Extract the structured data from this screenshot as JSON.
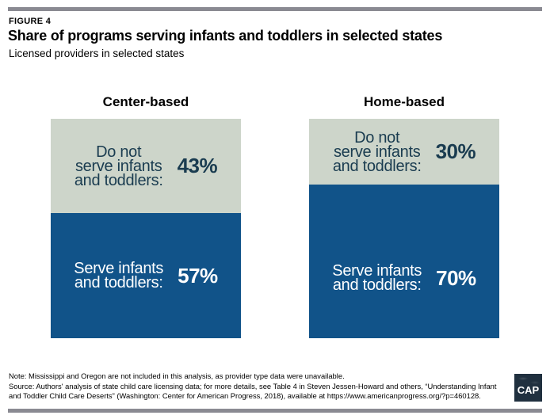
{
  "figure": {
    "label": "FIGURE 4",
    "title": "Share of programs serving infants and toddlers in selected states",
    "subtitle": "Licensed providers in selected states"
  },
  "colors": {
    "rule": "#8a8a92",
    "bar_blue": "#115389",
    "bar_sage": "#cdd5ca",
    "dark_label": "#1a3c50",
    "white_label": "#ffffff",
    "logo_bg": "#20303f"
  },
  "charts": [
    {
      "header": "Center-based",
      "segments": [
        {
          "lines": [
            "Do not",
            "serve infants",
            "and toddlers:"
          ],
          "value": "43%",
          "fill": "#cdd5ca",
          "text": "#1a3c50"
        },
        {
          "lines": [
            "Serve infants",
            "and toddlers:"
          ],
          "value": "57%",
          "fill": "#115389",
          "text": "#ffffff"
        }
      ]
    },
    {
      "header": "Home-based",
      "segments": [
        {
          "lines": [
            "Do not",
            "serve infants",
            "and toddlers:"
          ],
          "value": "30%",
          "fill": "#cdd5ca",
          "text": "#1a3c50"
        },
        {
          "lines": [
            "Serve infants",
            "and toddlers:"
          ],
          "value": "70%",
          "fill": "#115389",
          "text": "#ffffff"
        }
      ]
    }
  ],
  "chart_data": {
    "type": "bar",
    "subtype": "100%-stacked-columns",
    "title": "Share of programs serving infants and toddlers in selected states",
    "subtitle": "Licensed providers in selected states",
    "categories": [
      "Center-based",
      "Home-based"
    ],
    "series": [
      {
        "name": "Do not serve infants and toddlers",
        "values": [
          43,
          30
        ],
        "color": "#cdd5ca"
      },
      {
        "name": "Serve infants and toddlers",
        "values": [
          57,
          70
        ],
        "color": "#115389"
      }
    ],
    "unit": "%",
    "ylim": [
      0,
      100
    ],
    "grid": false,
    "legend_position": "in-bar-labels",
    "data_labels": [
      "43%",
      "57%",
      "30%",
      "70%"
    ]
  },
  "footer": {
    "note": "Note: Mississippi and Oregon are not included in this analysis, as provider type data were unavailable.",
    "source": "Source: Authors' analysis of state child care licensing data; for more details, see Table 4 in Steven Jessen-Howard and others, “Understanding Infant and Toddler Child Care Deserts” (Washington: Center for American Progress, 2018), available at https://www.americanprogress.org/?p=460128.",
    "logo": "CAP"
  }
}
